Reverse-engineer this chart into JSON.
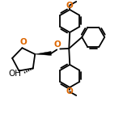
{
  "bg_color": "#ffffff",
  "bond_color": "#000000",
  "oxygen_color": "#dd6600",
  "line_width": 1.3,
  "font_size": 7.5,
  "figsize": [
    1.52,
    1.52
  ],
  "dpi": 100,
  "xlim": [
    0,
    152
  ],
  "ylim": [
    0,
    152
  ]
}
